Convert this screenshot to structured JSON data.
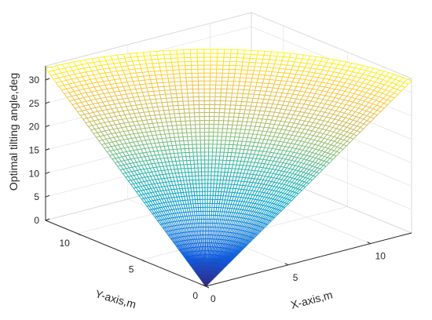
{
  "chart_data": {
    "type": "surface",
    "title": "",
    "xlabel": "X-axis,m",
    "ylabel": "Y-axis,m",
    "zlabel": "Optimal tilting angle,deg",
    "xlim": [
      0,
      12.5
    ],
    "ylim": [
      0,
      12.5
    ],
    "zlim": [
      0,
      33
    ],
    "x_ticks": [
      0,
      5,
      10
    ],
    "y_ticks": [
      0,
      5,
      10
    ],
    "z_ticks": [
      0,
      5,
      10,
      15,
      20,
      25,
      30
    ],
    "surface": {
      "description_of_values": "z is the optimal tilting angle in degrees as a function of radial distance r = sqrt(x^2 + y^2); domain is a quarter disc of radius 12.5 m",
      "radius_max": 12.5,
      "r_samples": [
        0,
        2,
        4,
        6,
        8,
        10,
        12,
        12.5
      ],
      "z_samples": [
        0,
        5.2,
        10.4,
        15.6,
        20.8,
        26.0,
        31.2,
        32.5
      ],
      "grid_lines_per_direction": 60
    },
    "colormap": "parula",
    "colormap_stops": [
      "#352a87",
      "#0f5cdd",
      "#1481d6",
      "#06a4ca",
      "#2eb7a4",
      "#87bf77",
      "#d1bb59",
      "#fec832",
      "#f9fb0e"
    ],
    "grid": true,
    "box": true
  }
}
